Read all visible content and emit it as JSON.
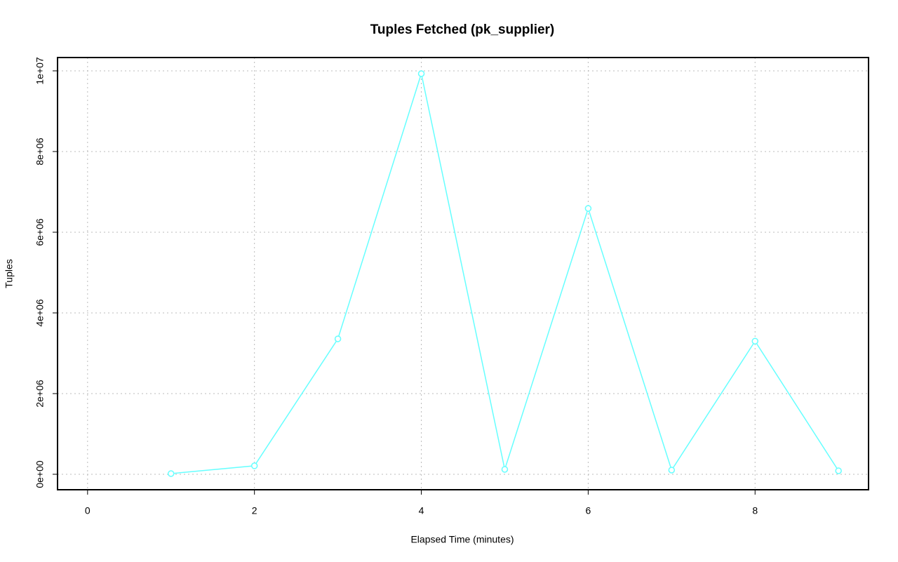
{
  "chart_data": {
    "type": "line",
    "title": "Tuples Fetched (pk_supplier)",
    "x_label": "Elapsed Time (minutes)",
    "y_label": "Tuples",
    "x": [
      1,
      2,
      3,
      4,
      5,
      6,
      7,
      8,
      9
    ],
    "series": [
      {
        "color": "#66ffff",
        "values": [
          17000,
          210000,
          3357000,
          9930000,
          122000,
          6590000,
          104000,
          3300000,
          87000
        ]
      }
    ],
    "xlim": [
      -0.36,
      9.36
    ],
    "xticks": [
      0,
      2,
      4,
      6,
      8
    ],
    "ylim": [
      -383000,
      10330000
    ],
    "yticks": [
      {
        "value": 0,
        "label": "0e+00"
      },
      {
        "value": 2000000,
        "label": "2e+06"
      },
      {
        "value": 4000000,
        "label": "4e+06"
      },
      {
        "value": 6000000,
        "label": "6e+06"
      },
      {
        "value": 8000000,
        "label": "8e+06"
      },
      {
        "value": 10000000,
        "label": "1e+07"
      }
    ],
    "grid": true
  }
}
